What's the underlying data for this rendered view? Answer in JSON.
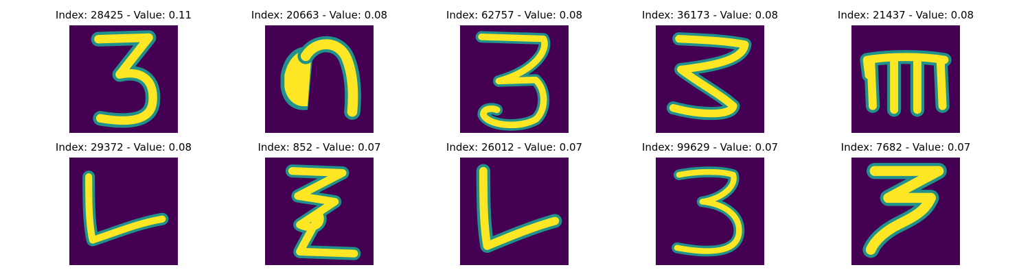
{
  "colors": {
    "background": "#440154",
    "foreground": "#fde725",
    "edge": "#21918c"
  },
  "panels": [
    {
      "title": "Index: 28425 - Value: 0.11",
      "glyph": "3"
    },
    {
      "title": "Index: 20663 - Value: 0.08",
      "glyph": "n"
    },
    {
      "title": "Index: 62757 - Value: 0.08",
      "glyph": "3"
    },
    {
      "title": "Index: 36173 - Value: 0.08",
      "glyph": "z"
    },
    {
      "title": "Index: 21437 - Value: 0.08",
      "glyph": "m"
    },
    {
      "title": "Index: 29372 - Value: 0.08",
      "glyph": "L"
    },
    {
      "title": "Index: 852 - Value: 0.07",
      "glyph": "z"
    },
    {
      "title": "Index: 26012 - Value: 0.07",
      "glyph": "L"
    },
    {
      "title": "Index: 99629 - Value: 0.07",
      "glyph": "3"
    },
    {
      "title": "Index: 7682 - Value: 0.07",
      "glyph": "3"
    }
  ]
}
